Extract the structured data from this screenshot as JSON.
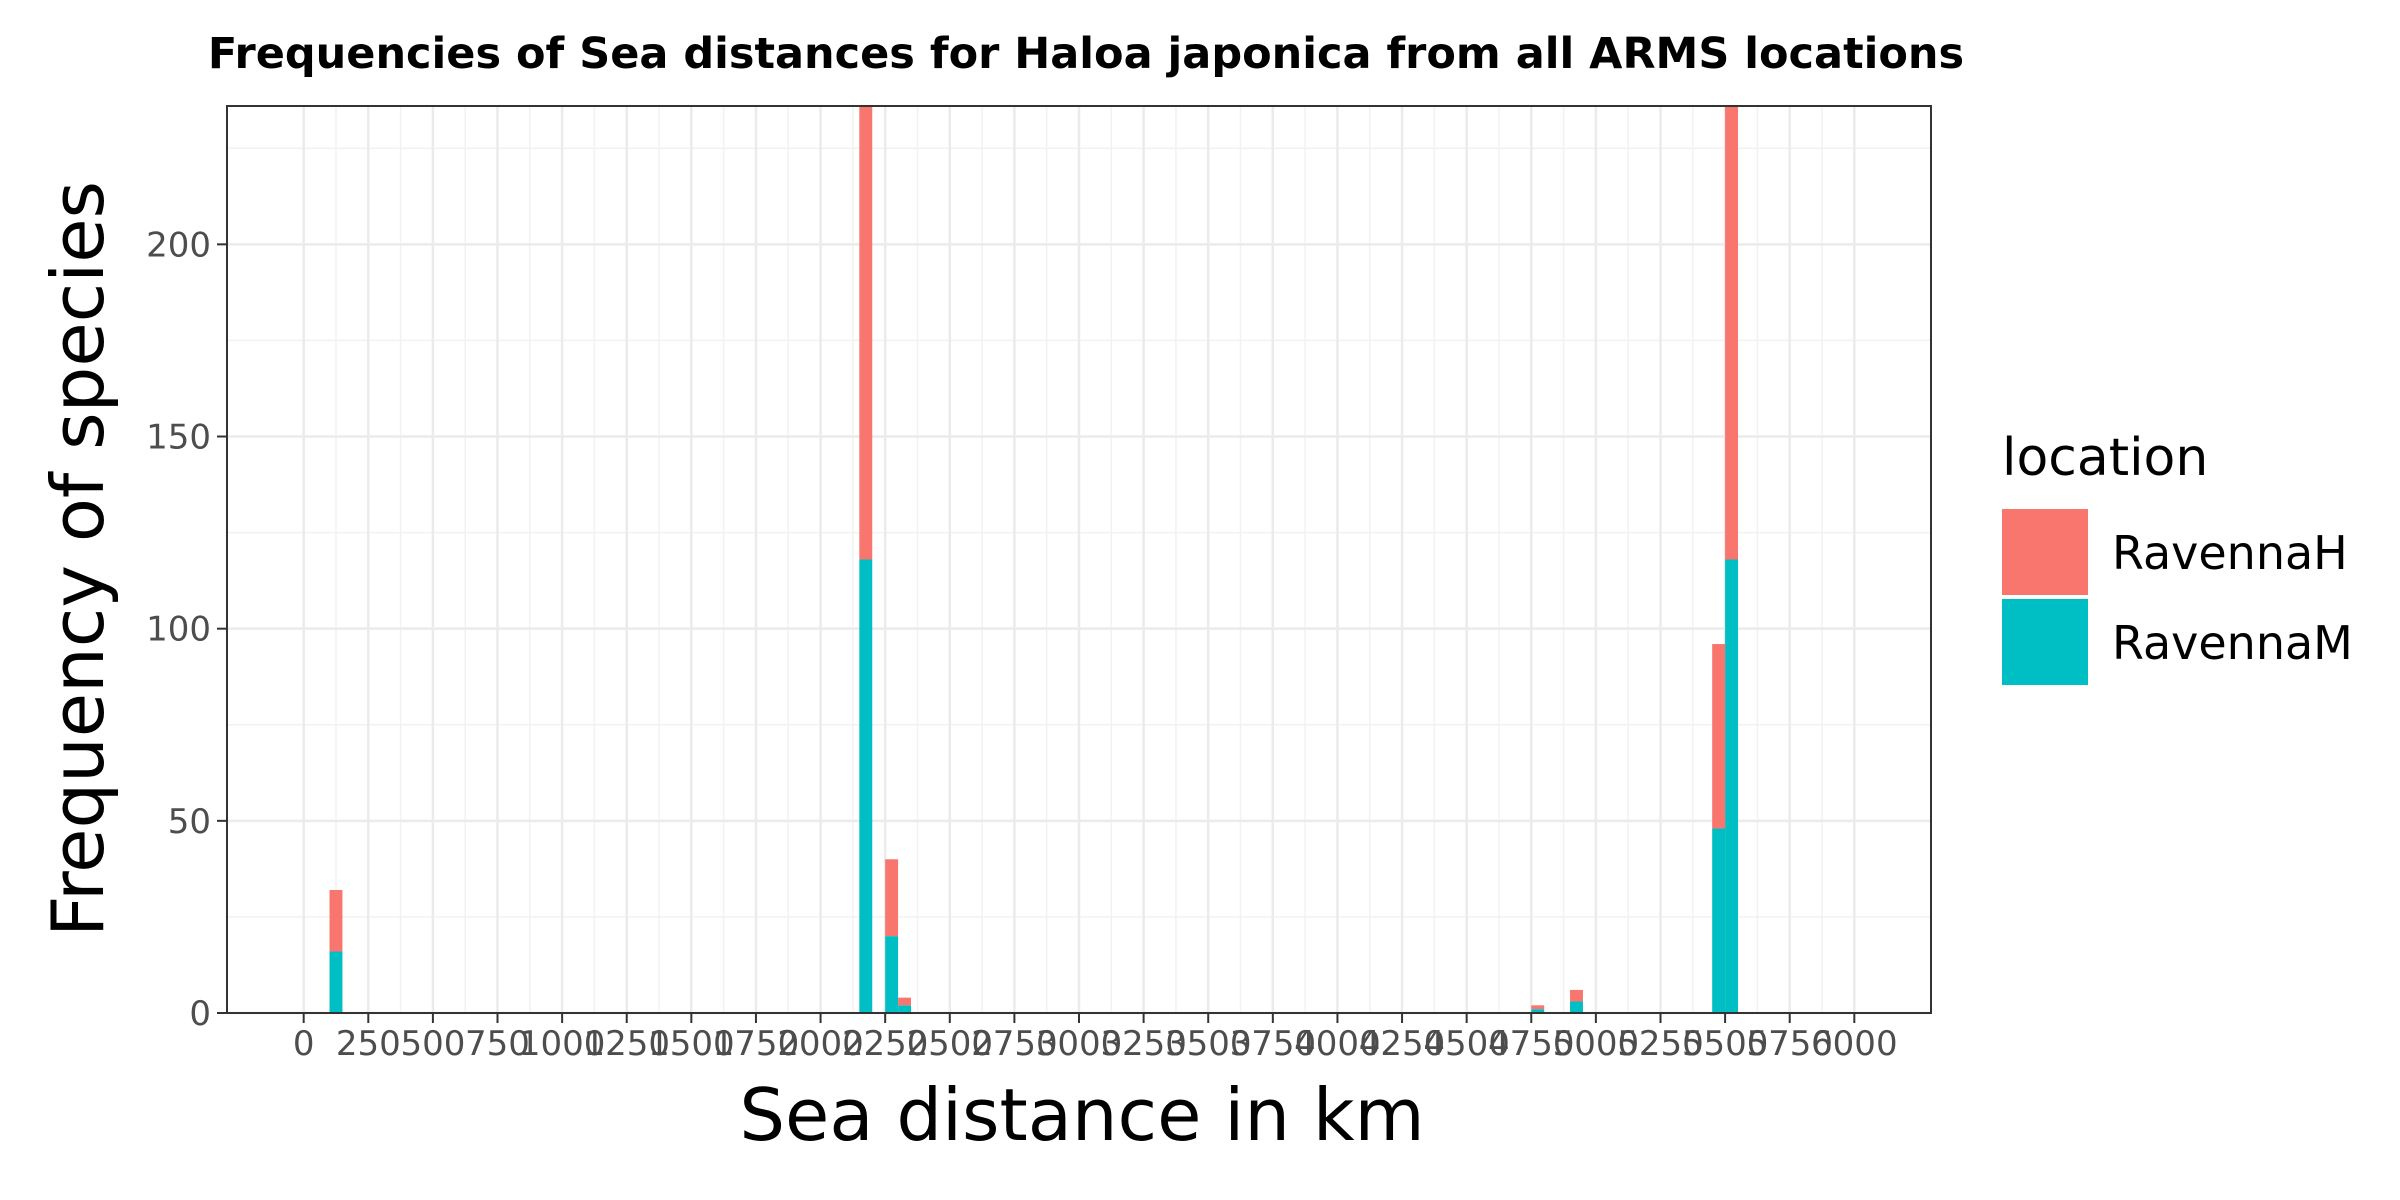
{
  "chart_data": {
    "type": "bar",
    "stacked": true,
    "title": "Frequencies of Sea distances for Haloa japonica from all ARMS locations",
    "xlabel": "Sea distance in km",
    "ylabel": "Frequency of species",
    "xlim": [
      0,
      6000
    ],
    "ylim": [
      0,
      236
    ],
    "bin_width": 50,
    "x_ticks": [
      0,
      250,
      500,
      750,
      1000,
      1250,
      1500,
      1750,
      2000,
      2250,
      2500,
      2750,
      3000,
      3250,
      3500,
      3750,
      4000,
      4250,
      4500,
      4750,
      5000,
      5250,
      5500,
      5750,
      6000
    ],
    "x_tick_labels": [
      "0",
      "250",
      "500",
      "750",
      "1000",
      "1250",
      "1500",
      "1750",
      "2000",
      "2250",
      "2500",
      "2750",
      "3000",
      "3250",
      "3500",
      "3750",
      "4000",
      "4250",
      "4500",
      "4750",
      "5000",
      "5250",
      "5500",
      "5750",
      "6000"
    ],
    "y_ticks": [
      0,
      50,
      100,
      150,
      200
    ],
    "y_tick_labels": [
      "0",
      "50",
      "100",
      "150",
      "200"
    ],
    "grid": true,
    "legend_title": "location",
    "legend_position": "right",
    "series": [
      {
        "name": "RavennaM",
        "color": "#00BFC4",
        "bins": [
          {
            "x": 125,
            "value": 16
          },
          {
            "x": 2175,
            "value": 118
          },
          {
            "x": 2275,
            "value": 20
          },
          {
            "x": 2325,
            "value": 2
          },
          {
            "x": 4775,
            "value": 1
          },
          {
            "x": 4925,
            "value": 3
          },
          {
            "x": 5475,
            "value": 48
          },
          {
            "x": 5525,
            "value": 118
          }
        ]
      },
      {
        "name": "RavennaH",
        "color": "#F8766D",
        "bins": [
          {
            "x": 125,
            "value": 16
          },
          {
            "x": 2175,
            "value": 118
          },
          {
            "x": 2275,
            "value": 20
          },
          {
            "x": 2325,
            "value": 2
          },
          {
            "x": 4775,
            "value": 1
          },
          {
            "x": 4925,
            "value": 3
          },
          {
            "x": 5475,
            "value": 48
          },
          {
            "x": 5525,
            "value": 118
          }
        ]
      }
    ],
    "legend_order": [
      "RavennaH",
      "RavennaM"
    ]
  }
}
